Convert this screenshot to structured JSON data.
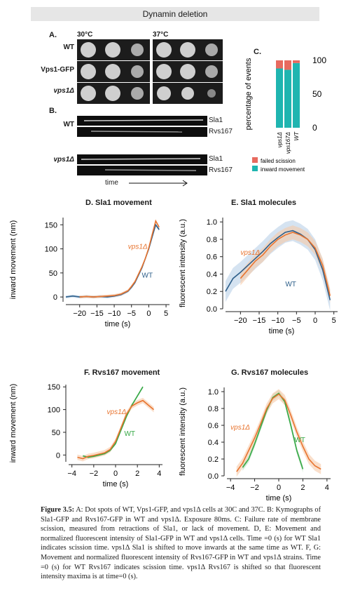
{
  "banner": "Dynamin deletion",
  "panelA": {
    "label": "A.",
    "temps": [
      "30°C",
      "37°C"
    ],
    "strains": [
      "WT",
      "Vps1-GFP",
      "vps1Δ"
    ]
  },
  "panelB": {
    "label": "B.",
    "rows": [
      {
        "strain": "WT",
        "tracks": [
          "Sla1",
          "Rvs167"
        ]
      },
      {
        "strain": "vps1Δ",
        "tracks": [
          "Sla1",
          "Rvs167"
        ]
      }
    ],
    "time_label": "time"
  },
  "panelC": {
    "label": "C.",
    "ylabel": "percentage of events",
    "legend": [
      "failed scission",
      "inward movement"
    ],
    "colors": {
      "failed": "#e86a5f",
      "inward": "#1fb5b0"
    },
    "chart_data": {
      "type": "bar",
      "categories": [
        "vps1Δ",
        "vps167Δ",
        "WT"
      ],
      "series": [
        {
          "name": "inward movement",
          "values": [
            88,
            86,
            96
          ]
        },
        {
          "name": "failed scission",
          "values": [
            12,
            14,
            4
          ]
        }
      ],
      "yticks": [
        "0",
        "50",
        "100"
      ],
      "ylim": [
        0,
        100
      ]
    }
  },
  "panelD": {
    "title": "D.  Sla1 movement",
    "chart_data": {
      "type": "line",
      "xlabel": "time (s)",
      "ylabel": "inward movement (nm)",
      "xlim": [
        -24,
        6
      ],
      "ylim": [
        -10,
        165
      ],
      "xticks": [
        -20,
        -15,
        -10,
        -5,
        0,
        5
      ],
      "yticks": [
        0,
        50,
        100,
        150
      ],
      "xtick_labels": [
        "−20",
        "−15",
        "−10",
        "−5",
        "0",
        "5"
      ],
      "ytick_labels": [
        "0",
        "50",
        "100",
        "150"
      ],
      "annotations": [
        "vps1Δ",
        "WT"
      ],
      "series": [
        {
          "name": "WT",
          "x": [
            -24,
            -22,
            -20,
            -18,
            -16,
            -14,
            -12,
            -10,
            -8,
            -6,
            -5,
            -4,
            -3,
            -2,
            -1,
            0,
            1,
            2,
            3
          ],
          "y": [
            0,
            2,
            0,
            1,
            0,
            1,
            0,
            2,
            5,
            12,
            20,
            30,
            45,
            60,
            80,
            100,
            125,
            150,
            140
          ]
        },
        {
          "name": "vps1Δ",
          "x": [
            -20,
            -18,
            -16,
            -14,
            -12,
            -10,
            -8,
            -6,
            -5,
            -4,
            -3,
            -2,
            -1,
            0,
            1,
            2,
            3
          ],
          "y": [
            0,
            1,
            0,
            1,
            2,
            3,
            6,
            13,
            22,
            32,
            47,
            62,
            80,
            102,
            130,
            158,
            145
          ]
        }
      ]
    }
  },
  "panelE": {
    "title": "E.  Sla1 molecules",
    "chart_data": {
      "type": "line",
      "xlabel": "time (s)",
      "ylabel": "fluorescent intensity (a.u.)",
      "xlim": [
        -24,
        6
      ],
      "ylim": [
        0,
        1.05
      ],
      "xticks": [
        -20,
        -15,
        -10,
        -5,
        0,
        5
      ],
      "yticks": [
        0,
        0.2,
        0.4,
        0.6,
        0.8,
        1.0
      ],
      "xtick_labels": [
        "−20",
        "−15",
        "−10",
        "−5",
        "0",
        "5"
      ],
      "ytick_labels": [
        "0.0",
        "0.2",
        "0.4",
        "0.6",
        "0.8",
        "1.0"
      ],
      "annotations": [
        "vps1Δ",
        "WT"
      ],
      "series": [
        {
          "name": "WT",
          "x": [
            -24,
            -22,
            -20,
            -18,
            -16,
            -14,
            -12,
            -10,
            -8,
            -6,
            -4,
            -2,
            0,
            2,
            4
          ],
          "y": [
            0.2,
            0.35,
            0.42,
            0.5,
            0.58,
            0.66,
            0.75,
            0.82,
            0.88,
            0.9,
            0.86,
            0.8,
            0.68,
            0.45,
            0.1
          ]
        },
        {
          "name": "vps1Δ",
          "x": [
            -20,
            -18,
            -16,
            -14,
            -12,
            -10,
            -8,
            -6,
            -4,
            -2,
            0,
            2,
            4
          ],
          "y": [
            0.35,
            0.45,
            0.55,
            0.62,
            0.72,
            0.8,
            0.85,
            0.88,
            0.85,
            0.8,
            0.7,
            0.5,
            0.15
          ]
        }
      ]
    }
  },
  "panelF": {
    "title": "F.  Rvs167 movement",
    "chart_data": {
      "type": "line",
      "xlabel": "time (s)",
      "ylabel": "inward movement (nm)",
      "xlim": [
        -4.3,
        4.3
      ],
      "ylim": [
        -15,
        155
      ],
      "xticks": [
        -4,
        -2,
        0,
        2,
        4
      ],
      "yticks": [
        0,
        50,
        100,
        150
      ],
      "xtick_labels": [
        "−4",
        "−2",
        "0",
        "2",
        "4"
      ],
      "ytick_labels": [
        "0",
        "50",
        "100",
        "150"
      ],
      "annotations": [
        "vps1Δ",
        "WT"
      ],
      "series": [
        {
          "name": "WT",
          "x": [
            -3,
            -2.5,
            -2,
            -1.5,
            -1,
            -0.5,
            0,
            0.5,
            1,
            1.5,
            2,
            2.5
          ],
          "y": [
            -2,
            -5,
            -3,
            0,
            3,
            10,
            25,
            55,
            85,
            110,
            130,
            150
          ]
        },
        {
          "name": "vps1Δ",
          "x": [
            -3.5,
            -3,
            -2.5,
            -2,
            -1.5,
            -1,
            -0.5,
            0,
            0.5,
            1,
            1.5,
            2,
            2.5,
            3,
            3.5
          ],
          "y": [
            -5,
            -8,
            -3,
            -1,
            2,
            5,
            12,
            30,
            60,
            90,
            108,
            115,
            120,
            110,
            100
          ]
        }
      ]
    }
  },
  "panelG": {
    "title": "G.  Rvs167 molecules",
    "chart_data": {
      "type": "line",
      "xlabel": "time (s)",
      "ylabel": "fluorescent intensity (a.u.)",
      "xlim": [
        -4.3,
        4.3
      ],
      "ylim": [
        0,
        1.05
      ],
      "xticks": [
        -4,
        -2,
        0,
        2,
        4
      ],
      "yticks": [
        0,
        0.2,
        0.4,
        0.6,
        0.8,
        1.0
      ],
      "xtick_labels": [
        "−4",
        "−2",
        "0",
        "2",
        "4"
      ],
      "ytick_labels": [
        "0.0",
        "0.2",
        "0.4",
        "0.6",
        "0.8",
        "1.0"
      ],
      "annotations": [
        "vps1Δ",
        "WT"
      ],
      "series": [
        {
          "name": "WT",
          "x": [
            -3,
            -2.5,
            -2,
            -1.5,
            -1,
            -0.5,
            0,
            0.5,
            1,
            1.5,
            2
          ],
          "y": [
            0.1,
            0.2,
            0.38,
            0.58,
            0.78,
            0.93,
            0.98,
            0.88,
            0.6,
            0.3,
            0.08
          ]
        },
        {
          "name": "vps1Δ",
          "x": [
            -3.5,
            -3,
            -2.5,
            -2,
            -1.5,
            -1,
            -0.5,
            0,
            0.5,
            1,
            1.5,
            2,
            2.5,
            3,
            3.5
          ],
          "y": [
            0.05,
            0.15,
            0.3,
            0.45,
            0.62,
            0.8,
            0.92,
            0.97,
            0.9,
            0.72,
            0.52,
            0.35,
            0.2,
            0.12,
            0.08
          ]
        }
      ]
    }
  },
  "colors": {
    "wt": "#2e5f8a",
    "vps1": "#e8742f",
    "wt_green": "#35a845",
    "band_blue": "#b9d0e8",
    "band_orange": "#f6c9a8"
  },
  "caption": {
    "fig_label": "Figure 3.5:",
    "text": "A: Dot spots of WT, Vps1-GFP, and vps1Δ cells at 30C and 37C. B: Kymographs of Sla1-GFP and Rvs167-GFP in WT and vps1Δ. Exposure 80ms. C: Failure rate of membrane scission, measured from retractions of Sla1, or lack of movement. D, E: Movement and normalized fluorescent intensity of Sla1-GFP in WT and vps1Δ cells. Time =0 (s) for WT Sla1 indicates scission time. vps1Δ Sla1 is shifted to move inwards at the same time as WT. F, G: Movement and normalized fluorescent intensity of Rvs167-GFP in WT and vps1Δ strains. Time =0 (s) for WT Rvs167 indicates scission time. vps1Δ Rvs167 is shifted so that fluorescent intensity maxima is at time=0 (s)."
  }
}
